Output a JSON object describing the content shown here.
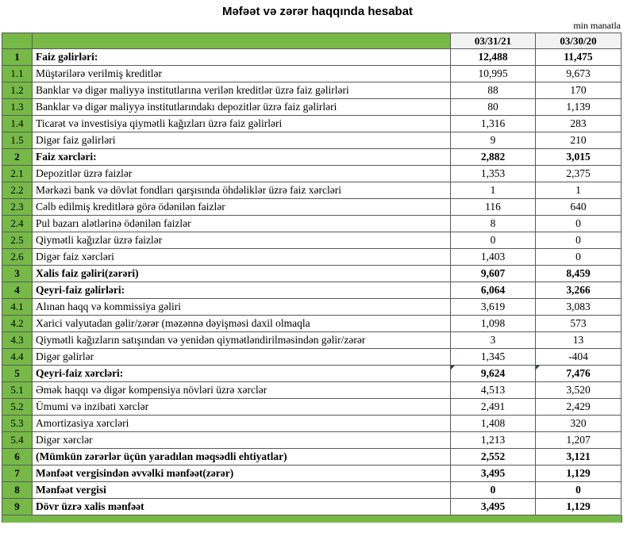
{
  "title": "Məfəət və zərər haqqında hesabat",
  "unit_label": "min manatla",
  "header": {
    "col_date_1": "03/31/21",
    "col_date_2": "03/30/20"
  },
  "colors": {
    "green": "#76b947",
    "header_bg": "#f2f2f2",
    "border": "#5a5a5a",
    "error_indicator": "#1d4d2b"
  },
  "icons": {
    "error_indicator": "error-indicator-icon"
  },
  "rows": [
    {
      "num": "1",
      "label": "Faiz gəlirləri:",
      "v1": "12,488",
      "v2": "11,475",
      "bold": true,
      "flag": false
    },
    {
      "num": "1.1",
      "label": "Müştərilərə verilmiş kreditlər",
      "v1": "10,995",
      "v2": "9,673",
      "bold": false,
      "flag": false
    },
    {
      "num": "1.2",
      "label": "Banklar və digər maliyyə institutlarına verilən kreditlər üzrə faiz gəlirləri",
      "v1": "88",
      "v2": "170",
      "bold": false,
      "flag": false
    },
    {
      "num": "1.3",
      "label": "Banklar və digər maliyyə institutlarındakı depozitlər üzrə faiz gəlirləri",
      "v1": "80",
      "v2": "1,139",
      "bold": false,
      "flag": false
    },
    {
      "num": "1.4",
      "label": "Ticarət və investisiya qiymətli kağızları üzrə faiz gəlirləri",
      "v1": "1,316",
      "v2": "283",
      "bold": false,
      "flag": false
    },
    {
      "num": "1.5",
      "label": "Digər faiz gəlirləri",
      "v1": "9",
      "v2": "210",
      "bold": false,
      "flag": false
    },
    {
      "num": "2",
      "label": "Faiz xərcləri:",
      "v1": "2,882",
      "v2": "3,015",
      "bold": true,
      "flag": false
    },
    {
      "num": "2.1",
      "label": "Depozitlər üzrə faizlər",
      "v1": "1,353",
      "v2": "2,375",
      "bold": false,
      "flag": false
    },
    {
      "num": "2.2",
      "label": "Mərkəzi bank və dövlət fondları qarşısında öhdəliklər üzrə faiz xərcləri",
      "v1": "1",
      "v2": "1",
      "bold": false,
      "flag": false
    },
    {
      "num": "2.3",
      "label": "Cəlb edilmiş kreditlərə görə ödənilən faizlər",
      "v1": "116",
      "v2": "640",
      "bold": false,
      "flag": false
    },
    {
      "num": "2.4",
      "label": "Pul bazarı alətlərinə ödənilən faizlər",
      "v1": "8",
      "v2": "0",
      "bold": false,
      "flag": false
    },
    {
      "num": "2.5",
      "label": "Qiymətli kağızlar üzrə faizlər",
      "v1": "0",
      "v2": "0",
      "bold": false,
      "flag": false
    },
    {
      "num": "2.6",
      "label": "Digər faiz xərcləri",
      "v1": "1,403",
      "v2": "0",
      "bold": false,
      "flag": false
    },
    {
      "num": "3",
      "label": "Xalis faiz gəliri(zərəri)",
      "v1": "9,607",
      "v2": "8,459",
      "bold": true,
      "flag": false
    },
    {
      "num": "4",
      "label": "Qeyri-faiz gəlirləri:",
      "v1": "6,064",
      "v2": "3,266",
      "bold": true,
      "flag": false
    },
    {
      "num": "4.1",
      "label": "Alınan haqq və kommissiya gəliri",
      "v1": "3,619",
      "v2": "3,083",
      "bold": false,
      "flag": false
    },
    {
      "num": "4.2",
      "label": "Xarici valyutadan gəlir/zərər (məzənnə dəyişməsi daxil olmaqla",
      "v1": "1,098",
      "v2": "573",
      "bold": false,
      "flag": false
    },
    {
      "num": "4.3",
      "label": "Qiymətli kağızların satışından və yenidən qiymətləndirilməsindən gəlir/zərər",
      "v1": "3",
      "v2": "13",
      "bold": false,
      "flag": false
    },
    {
      "num": "4.4",
      "label": "Digər gəlirlər",
      "v1": "1,345",
      "v2": "-404",
      "bold": false,
      "flag": false
    },
    {
      "num": "5",
      "label": "Qeyri-faiz xərcləri:",
      "v1": "9,624",
      "v2": "7,476",
      "bold": true,
      "flag": true
    },
    {
      "num": "5.1",
      "label": "Əmək haqqı və digər kompensiya növləri üzrə xərclər",
      "v1": "4,513",
      "v2": "3,520",
      "bold": false,
      "flag": false
    },
    {
      "num": "5.2",
      "label": "Ümumi və inzibati xərclər",
      "v1": "2,491",
      "v2": "2,429",
      "bold": false,
      "flag": false
    },
    {
      "num": "5.3",
      "label": "Amortizasiya xərcləri",
      "v1": "1,408",
      "v2": "320",
      "bold": false,
      "flag": false
    },
    {
      "num": "5.4",
      "label": "Digər xərclər",
      "v1": "1,213",
      "v2": "1,207",
      "bold": false,
      "flag": false
    },
    {
      "num": "6",
      "label": "(Mümkün zərərlər üçün yaradılan məqsədli ehtiyatlar)",
      "v1": "2,552",
      "v2": "3,121",
      "bold": true,
      "flag": false
    },
    {
      "num": "7",
      "label": "Mənfəət vergisindən əvvəlki mənfəət(zərər)",
      "v1": "3,495",
      "v2": "1,129",
      "bold": true,
      "flag": false
    },
    {
      "num": "8",
      "label": "Mənfəət vergisi",
      "v1": "0",
      "v2": "0",
      "bold": true,
      "flag": false
    },
    {
      "num": "9",
      "label": "Dövr üzrə xalis mənfəət",
      "v1": "3,495",
      "v2": "1,129",
      "bold": true,
      "flag": false
    }
  ]
}
